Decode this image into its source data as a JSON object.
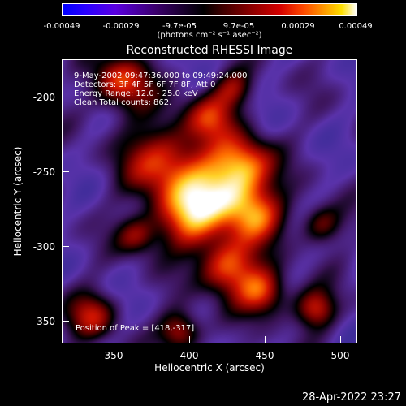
{
  "colorbar": {
    "ticks": [
      "-0.00049",
      "-0.00029",
      "-9.7e-05",
      "9.7e-05",
      "0.00029",
      "0.00049"
    ],
    "unit_label": "(photons cm⁻² s⁻¹ asec⁻²)"
  },
  "plot": {
    "title": "Reconstructed RHESSI Image",
    "info": {
      "time_range": "9-May-2002 09:47:36.000 to 09:49:24.000",
      "detectors": "Detectors: 3F 4F 5F 6F 7F 8F, Att 0",
      "energy_range": "Energy Range: 12.0 - 25.0 keV",
      "clean_counts": "Clean  Total counts: 862.",
      "peak_position": "Position of Peak = [418,-317]"
    },
    "xlabel": "Heliocentric X (arcsec)",
    "ylabel": "Heliocentric Y (arcsec)",
    "xticks": [
      "350",
      "400",
      "450",
      "500"
    ],
    "yticks": [
      "-200",
      "-250",
      "-300",
      "-350"
    ],
    "colors": {
      "background": "#000000",
      "low": "#5a2aa6",
      "mid": "#a01000",
      "high": "#ffd030",
      "peak": "#ffffff"
    }
  },
  "timestamp": "28-Apr-2022 23:27"
}
